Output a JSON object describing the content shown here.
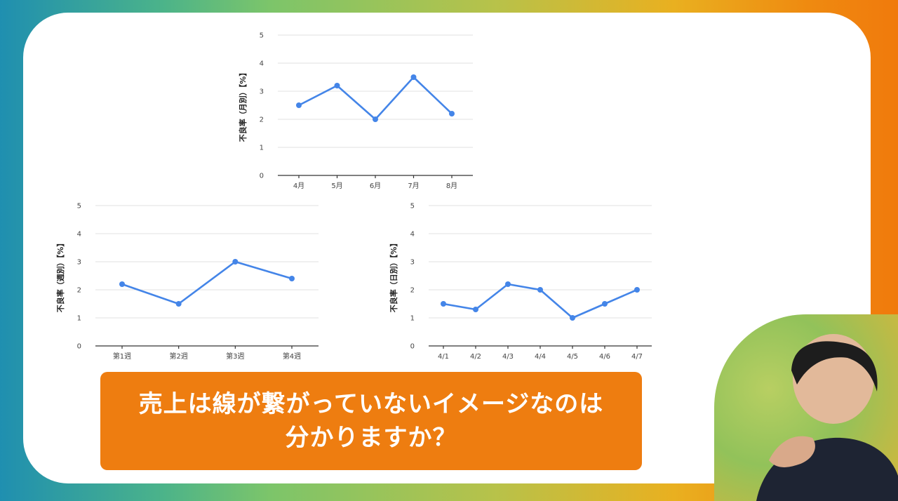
{
  "banner": {
    "line1": "売上は線が繋がっていないイメージなのは",
    "line2": "分かりますか？"
  },
  "colors": {
    "line": "#4485e8",
    "banner": "#ee7d10"
  },
  "chart_data": [
    {
      "type": "line",
      "categories": [
        "4月",
        "5月",
        "6月",
        "7月",
        "8月"
      ],
      "series": [
        {
          "values": [
            2.5,
            3.2,
            2.0,
            3.5,
            2.2
          ]
        }
      ],
      "ylabel": "不良率（月別）【%】",
      "ylim": [
        0,
        5
      ],
      "yticks": [
        "0",
        "1",
        "2",
        "3",
        "4",
        "5"
      ],
      "grid": true
    },
    {
      "type": "line",
      "categories": [
        "第1週",
        "第2週",
        "第3週",
        "第4週"
      ],
      "series": [
        {
          "values": [
            2.2,
            1.5,
            3.0,
            2.4
          ]
        }
      ],
      "ylabel": "不良率（週別）【%】",
      "ylim": [
        0,
        5
      ],
      "yticks": [
        "0",
        "1",
        "2",
        "3",
        "4",
        "5"
      ],
      "grid": true
    },
    {
      "type": "line",
      "categories": [
        "4/1",
        "4/2",
        "4/3",
        "4/4",
        "4/5",
        "4/6",
        "4/7"
      ],
      "series": [
        {
          "values": [
            1.5,
            1.3,
            2.2,
            2.0,
            1.0,
            1.5,
            2.0
          ]
        }
      ],
      "ylabel": "不良率（日別）【%】",
      "ylim": [
        0,
        5
      ],
      "yticks": [
        "0",
        "1",
        "2",
        "3",
        "4",
        "5"
      ],
      "grid": true
    }
  ]
}
